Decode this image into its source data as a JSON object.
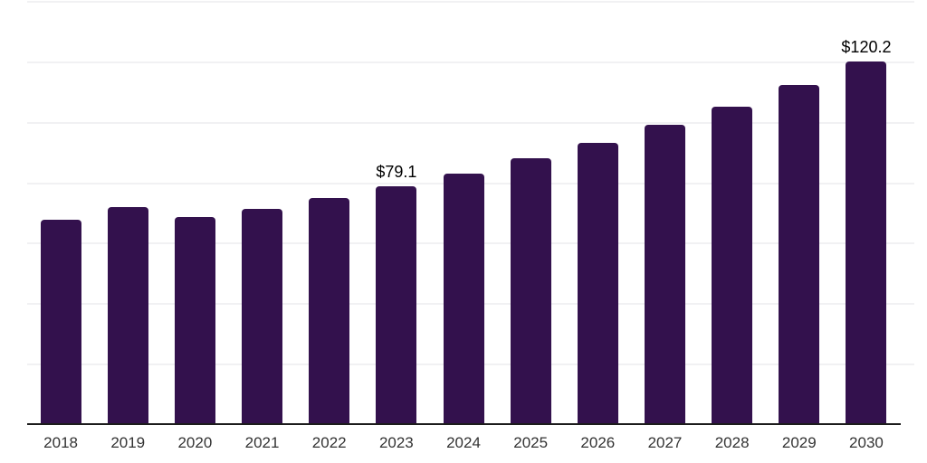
{
  "chart_data": {
    "type": "bar",
    "title": "",
    "xlabel": "",
    "ylabel": "",
    "categories": [
      "2018",
      "2019",
      "2020",
      "2021",
      "2022",
      "2023",
      "2024",
      "2025",
      "2026",
      "2027",
      "2028",
      "2029",
      "2030"
    ],
    "values": [
      67.9,
      72.0,
      68.8,
      71.5,
      75.0,
      79.1,
      83.2,
      88.3,
      93.2,
      99.2,
      105.4,
      112.4,
      120.2
    ],
    "value_labels": {
      "2023": "$79.1",
      "2030": "$120.2"
    },
    "ylim": [
      0,
      140
    ],
    "gridline_step": 20,
    "grid": true,
    "legend": "none",
    "y_axis_tick_labels_visible": false,
    "colors": {
      "bar": "#33114D",
      "gridline": "#f1f1f3",
      "axis": "#1c1c1c",
      "tick_label": "#333333",
      "value_label": "#000000",
      "background": "#ffffff"
    }
  }
}
